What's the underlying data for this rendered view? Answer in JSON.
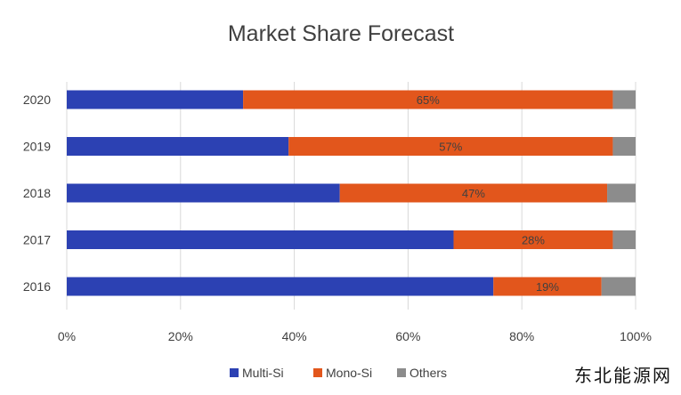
{
  "chart_data": {
    "type": "bar",
    "orientation": "horizontal",
    "stacked": true,
    "title": "Market Share Forecast",
    "categories": [
      "2020",
      "2019",
      "2018",
      "2017",
      "2016"
    ],
    "series": [
      {
        "name": "Multi-Si",
        "color": "#2c41b3",
        "values": [
          31,
          39,
          48,
          68,
          75
        ]
      },
      {
        "name": "Mono-Si",
        "color": "#e2561c",
        "values": [
          65,
          57,
          47,
          28,
          19
        ]
      },
      {
        "name": "Others",
        "color": "#8c8c8c",
        "values": [
          4,
          4,
          5,
          4,
          6
        ]
      }
    ],
    "data_labels": [
      "65%",
      "57%",
      "47%",
      "28%",
      "19%"
    ],
    "x_ticks": [
      "0%",
      "20%",
      "40%",
      "60%",
      "80%",
      "100%"
    ],
    "xlim": [
      0,
      100
    ],
    "grid": true,
    "legend_position": "bottom"
  },
  "watermark": "东北能源网"
}
